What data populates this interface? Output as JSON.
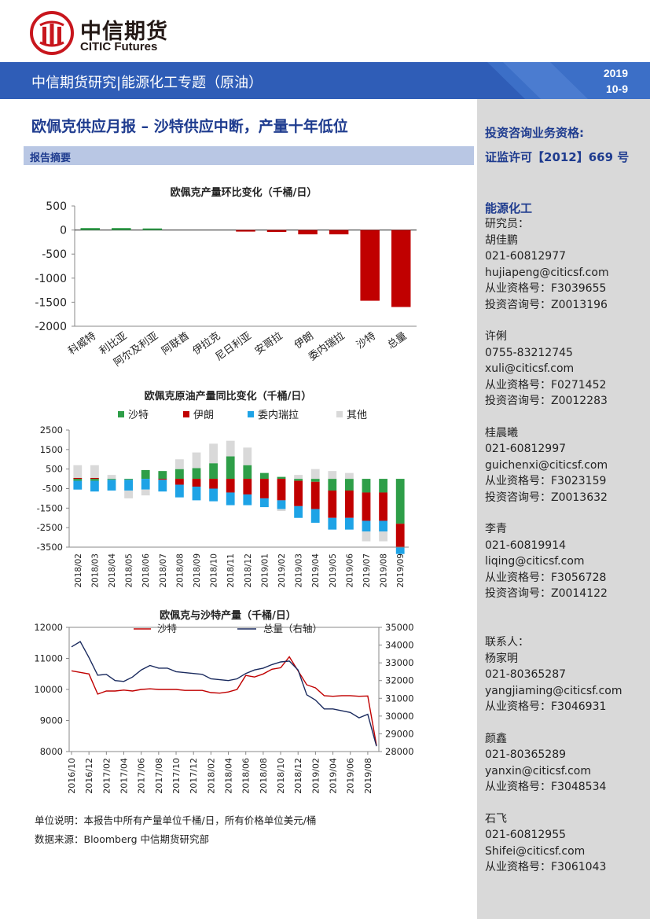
{
  "logo": {
    "cn": "中信期货",
    "en": "CITIC Futures"
  },
  "banner": {
    "title": "中信期货研究|能源化工专题（原油）",
    "year": "2019",
    "date": "10-9"
  },
  "report": {
    "title": "欧佩克供应月报 – 沙特供应中断，产量十年低位",
    "summary_label": "报告摘要"
  },
  "colors": {
    "navy": "#1f3c8f",
    "green": "#2e9e48",
    "red": "#c00000",
    "cyan": "#1ea3e6",
    "gray": "#d9d9d9",
    "darkline": "#1a2a5e"
  },
  "chart1": {
    "title": "欧佩克产量环比变化（千桶/日）",
    "chart_data": {
      "type": "bar",
      "categories": [
        "科威特",
        "利比亚",
        "阿尔及利亚",
        "阿联酋",
        "伊拉克",
        "尼日利亚",
        "安哥拉",
        "伊朗",
        "委内瑞拉",
        "沙特",
        "总量"
      ],
      "values": [
        40,
        40,
        5,
        0,
        0,
        -30,
        -40,
        -90,
        -90,
        -1470,
        -1600
      ],
      "ylim": [
        -2000,
        500
      ],
      "yticks": [
        "500",
        "0",
        "-500",
        "-1000",
        "-1500",
        "-2000"
      ]
    }
  },
  "chart2": {
    "title": "欧佩克原油产量同比变化（千桶/日）",
    "legend": [
      "沙特",
      "伊朗",
      "委内瑞拉",
      "其他"
    ],
    "chart_data": {
      "type": "bar",
      "stacked": true,
      "categories": [
        "2018/02",
        "2018/03",
        "2018/04",
        "2018/05",
        "2018/06",
        "2018/07",
        "2018/08",
        "2018/09",
        "2018/10",
        "2018/11",
        "2018/12",
        "2019/01",
        "2019/02",
        "2019/03",
        "2019/04",
        "2019/05",
        "2019/06",
        "2019/07",
        "2019/08",
        "2019/09"
      ],
      "series": [
        {
          "name": "沙特",
          "values": [
            -100,
            -100,
            -50,
            -50,
            450,
            400,
            500,
            550,
            800,
            1150,
            700,
            300,
            100,
            -100,
            -150,
            -600,
            -600,
            -700,
            -700,
            -2300
          ]
        },
        {
          "name": "伊朗",
          "values": [
            50,
            50,
            0,
            0,
            0,
            -50,
            -300,
            -400,
            -500,
            -700,
            -800,
            -1000,
            -1100,
            -1300,
            -1400,
            -1400,
            -1400,
            -1450,
            -1450,
            -1200
          ]
        },
        {
          "name": "委内瑞拉",
          "values": [
            -450,
            -550,
            -550,
            -550,
            -550,
            -600,
            -650,
            -700,
            -650,
            -650,
            -550,
            -450,
            -450,
            -600,
            -700,
            -600,
            -600,
            -550,
            -550,
            -350
          ]
        },
        {
          "name": "其他",
          "values": [
            650,
            650,
            200,
            -400,
            -300,
            0,
            500,
            800,
            1000,
            800,
            900,
            0,
            -100,
            200,
            500,
            400,
            300,
            -500,
            -500,
            0
          ]
        }
      ],
      "ylim": [
        -3500,
        2500
      ],
      "yticks": [
        "2500",
        "1500",
        "500",
        "-500",
        "-1500",
        "-2500",
        "-3500"
      ]
    }
  },
  "chart3": {
    "title": "欧佩克与沙特产量（千桶/日）",
    "legend": [
      "沙特",
      "总量（右轴）"
    ],
    "chart_data": {
      "type": "line",
      "x": [
        "2016/10",
        "2016/11",
        "2016/12",
        "2017/01",
        "2017/02",
        "2017/03",
        "2017/04",
        "2017/05",
        "2017/06",
        "2017/07",
        "2017/08",
        "2017/09",
        "2017/10",
        "2017/11",
        "2017/12",
        "2018/01",
        "2018/02",
        "2018/03",
        "2018/04",
        "2018/05",
        "2018/06",
        "2018/07",
        "2018/08",
        "2018/09",
        "2018/10",
        "2018/11",
        "2018/12",
        "2019/01",
        "2019/02",
        "2019/03",
        "2019/04",
        "2019/05",
        "2019/06",
        "2019/07",
        "2019/08",
        "2019/09"
      ],
      "xticks": [
        "2016/10",
        "2016/12",
        "2017/02",
        "2017/04",
        "2017/06",
        "2017/08",
        "2017/10",
        "2017/12",
        "2018/02",
        "2018/04",
        "2018/06",
        "2018/08",
        "2018/10",
        "2018/12",
        "2019/02",
        "2019/04",
        "2019/06",
        "2019/08"
      ],
      "series": [
        {
          "name": "沙特",
          "axis": "left",
          "values": [
            10600,
            10550,
            10500,
            9850,
            9950,
            9950,
            9980,
            9950,
            10000,
            10020,
            10000,
            10000,
            10000,
            9970,
            9970,
            9970,
            9900,
            9880,
            9920,
            10000,
            10450,
            10400,
            10500,
            10650,
            10700,
            11050,
            10600,
            10150,
            10050,
            9800,
            9780,
            9800,
            9800,
            9780,
            9790,
            8200
          ]
        },
        {
          "name": "总量（右轴）",
          "axis": "right",
          "values": [
            33900,
            34200,
            33300,
            32300,
            32350,
            32000,
            31950,
            32200,
            32600,
            32850,
            32700,
            32700,
            32500,
            32450,
            32400,
            32350,
            32100,
            32050,
            32000,
            32100,
            32400,
            32600,
            32700,
            32900,
            33050,
            33100,
            32600,
            31200,
            30900,
            30400,
            30400,
            30300,
            30200,
            29900,
            30100,
            28300
          ]
        }
      ],
      "ylim_left": [
        8000,
        12000
      ],
      "ylim_right": [
        28000,
        35000
      ],
      "yticks_left": [
        "12000",
        "11000",
        "10000",
        "9000",
        "8000"
      ],
      "yticks_right": [
        "35000",
        "34000",
        "33000",
        "32000",
        "31000",
        "30000",
        "29000",
        "28000"
      ]
    }
  },
  "notes": {
    "unit": "单位说明：本报告中所有产量单位千桶/日，所有价格单位美元/桶",
    "source": "数据来源：Bloomberg 中信期货研究部"
  },
  "sidebar": {
    "license_title": "投资咨询业务资格:",
    "license_no": "证监许可【2012】669 号",
    "section": "能源化工",
    "researcher_label": "研究员：",
    "researchers": [
      {
        "name": "胡佳鹏",
        "phone": "021-60812977",
        "email": "hujiapeng@citicsf.com",
        "cert": "从业资格号：F3039655",
        "advisory": "投资咨询号：Z0013196"
      },
      {
        "name": "许俐",
        "phone": "0755-83212745",
        "email": "xuli@citicsf.com",
        "cert": "从业资格号：F0271452",
        "advisory": "投资咨询号：Z0012283"
      },
      {
        "name": "桂晨曦",
        "phone": "021-60812997",
        "email": "guichenxi@citicsf.com",
        "cert": "从业资格号：F3023159",
        "advisory": "投资咨询号：Z0013632"
      },
      {
        "name": "李青",
        "phone": "021-60819914",
        "email": "liqing@citicsf.com",
        "cert": "从业资格号：F3056728",
        "advisory": "投资咨询号：Z0014122"
      }
    ],
    "contact_label": "联系人：",
    "contacts": [
      {
        "name": "杨家明",
        "phone": "021-80365287",
        "email": "yangjiaming@citicsf.com",
        "cert": "从业资格号：F3046931"
      },
      {
        "name": "颜鑫",
        "phone": "021-80365289",
        "email": "yanxin@citicsf.com",
        "cert": "从业资格号：F3048534"
      },
      {
        "name": "石飞",
        "phone": "021-60812955",
        "email": "Shifei@citicsf.com",
        "cert": "从业资格号：F3061043"
      }
    ]
  }
}
